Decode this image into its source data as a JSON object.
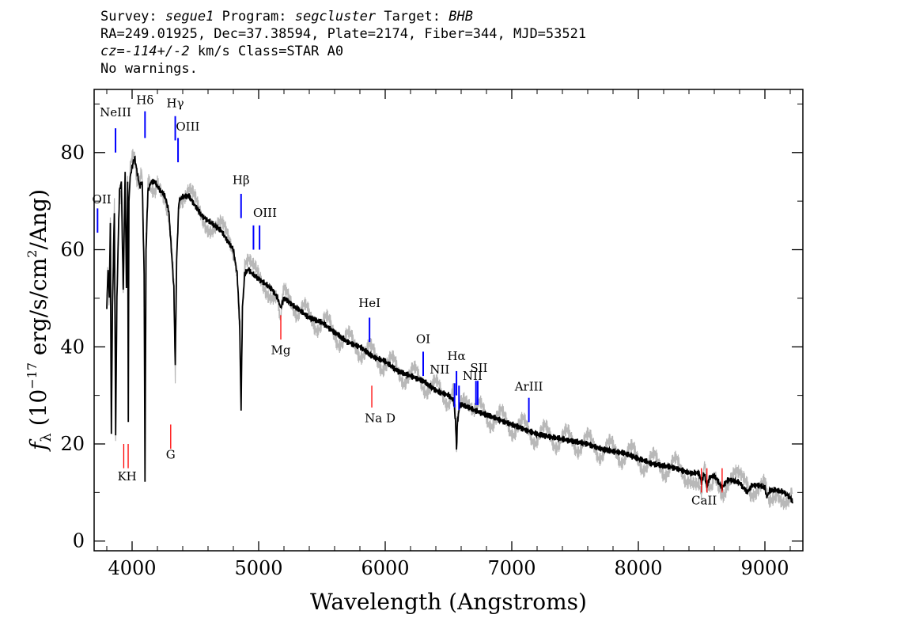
{
  "header": {
    "line1": {
      "survey_label": "Survey:",
      "survey": "segue1",
      "program_label": "Program:",
      "program": "segcluster",
      "target_label": "Target:",
      "target": "BHB"
    },
    "line2": "RA=249.01925, Dec=37.38594, Plate=2174, Fiber=344, MJD=53521",
    "line3": {
      "cz": "cz=-114+/-2",
      "rest": "km/s Class=STAR A0"
    },
    "line4": "No warnings."
  },
  "chart_data": {
    "type": "line",
    "xlabel": "Wavelength (Angstroms)",
    "ylabel": "f_λ (10^-17 erg/s/cm^2/Ang)",
    "xlim": [
      3700,
      9300
    ],
    "ylim": [
      -2,
      93
    ],
    "x_ticks": [
      4000,
      5000,
      6000,
      7000,
      8000,
      9000
    ],
    "y_ticks": [
      0,
      20,
      40,
      60,
      80
    ],
    "grid": false,
    "colors": {
      "flux": "#000000",
      "error": "#b8b8b8",
      "emission": "#0000ff",
      "absorption": "#ff0000"
    },
    "series": [
      {
        "x": [
          3800,
          3810,
          3820,
          3828,
          3836,
          3845,
          3860,
          3870,
          3880,
          3889,
          3900,
          3915,
          3930,
          3945,
          3955,
          3965,
          3970,
          3975,
          3985,
          4000,
          4020,
          4040,
          4060,
          4080,
          4095,
          4102,
          4110,
          4125,
          4150,
          4180,
          4200,
          4230,
          4260,
          4290,
          4310,
          4330,
          4341,
          4352,
          4370,
          4400,
          4450,
          4500,
          4550,
          4600,
          4650,
          4700,
          4750,
          4800,
          4830,
          4850,
          4861,
          4872,
          4890,
          4920,
          4950,
          5000,
          5050,
          5100,
          5150,
          5175,
          5200,
          5250,
          5300,
          5400,
          5500,
          5600,
          5700,
          5800,
          5900,
          6000,
          6100,
          6200,
          6300,
          6400,
          6500,
          6540,
          6555,
          6563,
          6572,
          6590,
          6620,
          6700,
          6800,
          6900,
          7000,
          7100,
          7200,
          7300,
          7400,
          7500,
          7600,
          7700,
          7800,
          7900,
          8000,
          8100,
          8200,
          8300,
          8400,
          8480,
          8498,
          8520,
          8542,
          8560,
          8600,
          8662,
          8700,
          8750,
          8800,
          8860,
          8900,
          8950,
          9000,
          9015,
          9040,
          9100,
          9150,
          9200,
          9220
        ],
        "y": [
          48,
          56,
          50,
          66,
          22,
          48,
          68,
          22,
          50,
          60,
          72,
          74,
          52,
          76,
          52,
          74,
          25,
          70,
          75,
          77,
          79,
          76,
          73,
          74,
          55,
          12,
          60,
          72,
          74,
          74,
          73,
          72,
          71,
          68,
          60,
          52,
          36,
          58,
          70,
          71,
          71,
          69,
          67,
          66,
          65,
          64,
          62,
          60,
          55,
          45,
          27,
          48,
          55,
          56,
          55,
          54,
          53,
          52,
          50,
          48,
          50,
          49,
          48,
          46,
          45,
          43,
          41,
          40,
          38,
          37,
          35,
          34,
          33,
          31,
          30,
          29,
          25,
          19,
          25,
          28,
          28,
          27,
          26,
          25,
          24,
          23,
          22,
          21.5,
          21,
          20.5,
          20,
          19,
          18.5,
          18,
          17,
          16,
          15.5,
          15,
          14,
          14,
          12,
          14,
          11,
          13,
          13.5,
          11,
          12.5,
          12.5,
          12,
          10,
          11.5,
          11.5,
          11,
          9,
          10.5,
          10.5,
          10,
          9,
          8
        ]
      }
    ],
    "line_markers": [
      {
        "label": "NeIII",
        "x": 3869,
        "kind": "emission"
      },
      {
        "label": "OII",
        "x": 3727,
        "kind": "emission"
      },
      {
        "label": "Hδ",
        "x": 4102,
        "kind": "emission"
      },
      {
        "label": "Hγ",
        "x": 4341,
        "kind": "emission"
      },
      {
        "label": "OIII",
        "x": 4363,
        "kind": "emission"
      },
      {
        "label": "Hβ",
        "x": 4861,
        "kind": "emission"
      },
      {
        "label": "OIII",
        "x": 4959,
        "x2": 5007,
        "kind": "emission"
      },
      {
        "label": "HeI",
        "x": 5876,
        "kind": "emission"
      },
      {
        "label": "OI",
        "x": 6300,
        "kind": "emission"
      },
      {
        "label": "NII",
        "x": 6548,
        "kind": "emission"
      },
      {
        "label": "Hα",
        "x": 6563,
        "kind": "emission"
      },
      {
        "label": "NII",
        "x": 6583,
        "kind": "emission"
      },
      {
        "label": "SII",
        "x": 6717,
        "x2": 6731,
        "kind": "emission"
      },
      {
        "label": "ArIII",
        "x": 7135,
        "kind": "emission"
      },
      {
        "label": "K",
        "x": 3934,
        "kind": "absorption"
      },
      {
        "label": "H",
        "x": 3969,
        "kind": "absorption"
      },
      {
        "label": "G",
        "x": 4305,
        "kind": "absorption"
      },
      {
        "label": "Mg",
        "x": 5175,
        "kind": "absorption"
      },
      {
        "label": "Na D",
        "x": 5894,
        "kind": "absorption"
      },
      {
        "label": "CaII",
        "x": 8498,
        "x2": 8542,
        "x3": 8662,
        "kind": "absorption"
      }
    ]
  }
}
